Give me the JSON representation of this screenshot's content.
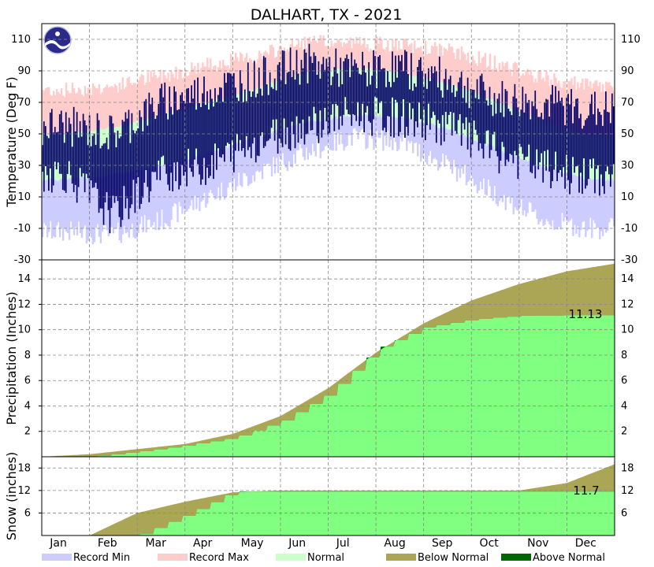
{
  "chart_data": {
    "type": "area",
    "title": "DALHART, TX - 2021",
    "months": [
      "Jan",
      "Feb",
      "Mar",
      "Apr",
      "May",
      "Jun",
      "Jul",
      "Aug",
      "Sep",
      "Oct",
      "Nov",
      "Dec"
    ],
    "legend": [
      {
        "label": "Record Min",
        "color": "#ccccff"
      },
      {
        "label": "Record Max",
        "color": "#ffcccc"
      },
      {
        "label": "Normal",
        "color": "#ccffcc"
      },
      {
        "label": "Below Normal",
        "color": "#aaa655"
      },
      {
        "label": "Above Normal",
        "color": "#006600"
      }
    ],
    "colors": {
      "record_min": "#ccccff",
      "record_max": "#ffcccc",
      "normal": "#ccffcc",
      "observed": "#000066",
      "below_normal": "#aaa655",
      "above_normal": "#006600",
      "actual": "#80ff80"
    },
    "temperature": {
      "ylabel": "Temperature (Deg F)",
      "ylim": [
        -30,
        120
      ],
      "ticks": [
        -30,
        -10,
        10,
        30,
        50,
        70,
        90,
        110
      ],
      "monthly": {
        "record_max": [
          78,
          80,
          87,
          94,
          99,
          108,
          108,
          106,
          103,
          95,
          85,
          80
        ],
        "normal_max": [
          50,
          54,
          62,
          70,
          79,
          88,
          92,
          89,
          82,
          71,
          58,
          49
        ],
        "normal_min": [
          21,
          24,
          30,
          38,
          48,
          57,
          62,
          61,
          53,
          41,
          29,
          21
        ],
        "record_min": [
          -12,
          -14,
          -5,
          10,
          25,
          38,
          48,
          45,
          30,
          12,
          -5,
          -10
        ],
        "observed_max": [
          55,
          50,
          70,
          78,
          85,
          95,
          90,
          92,
          85,
          72,
          70,
          65
        ],
        "observed_min": [
          25,
          -2,
          25,
          30,
          45,
          55,
          62,
          60,
          55,
          38,
          28,
          22
        ]
      }
    },
    "precipitation": {
      "ylabel": "Precipitation (Inches)",
      "ylim": [
        0,
        15.5
      ],
      "ticks": [
        2,
        4,
        6,
        8,
        10,
        12,
        14
      ],
      "annotation": "11.13",
      "normal_cumulative": [
        0.2,
        0.6,
        1.0,
        1.8,
        3.2,
        5.4,
        8.2,
        10.5,
        12.3,
        13.6,
        14.6,
        15.2
      ],
      "actual_cumulative": [
        0.0,
        0.4,
        0.9,
        1.5,
        2.8,
        5.0,
        8.5,
        10.2,
        10.8,
        11.1,
        11.13,
        11.13
      ]
    },
    "snow": {
      "ylabel": "Snow (inches)",
      "ylim": [
        0,
        21
      ],
      "ticks": [
        6,
        12,
        18
      ],
      "annotation": "11.7",
      "normal_cumulative": [
        0,
        6,
        9,
        11.5,
        12,
        12,
        12,
        12,
        12,
        12,
        14,
        19
      ],
      "actual_cumulative": [
        0,
        0,
        5.5,
        11.7,
        11.7,
        11.7,
        11.7,
        11.7,
        11.7,
        11.7,
        11.7,
        11.7
      ]
    }
  }
}
